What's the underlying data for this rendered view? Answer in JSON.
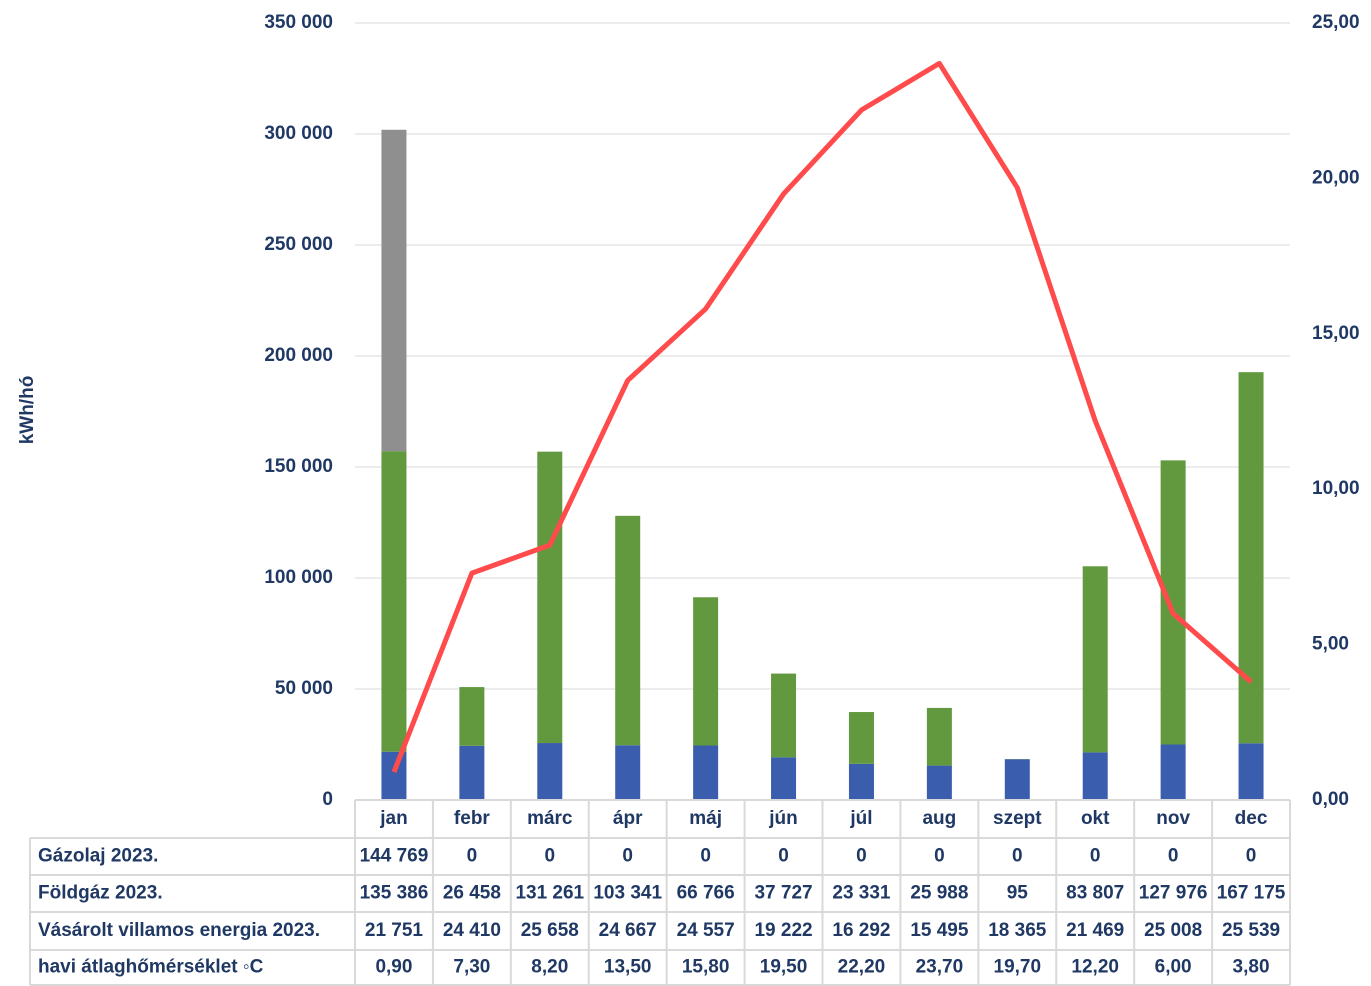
{
  "chart_data": {
    "type": "bar",
    "y_axis_label": "kWh/hó",
    "categories": [
      "jan",
      "febr",
      "márc",
      "ápr",
      "máj",
      "jún",
      "júl",
      "aug",
      "szept",
      "okt",
      "nov",
      "dec"
    ],
    "series": [
      {
        "name": "Vásárolt villamos energia 2023.",
        "color": "#3a5dae",
        "type": "bar",
        "values": [
          21751,
          24410,
          25658,
          24667,
          24557,
          19222,
          16292,
          15495,
          18365,
          21469,
          25008,
          25539
        ],
        "value_labels": [
          "21 751",
          "24 410",
          "25 658",
          "24 667",
          "24 557",
          "19 222",
          "16 292",
          "15 495",
          "18 365",
          "21 469",
          "25 008",
          "25 539"
        ]
      },
      {
        "name": "Földgáz 2023.",
        "color": "#62993e",
        "type": "bar",
        "values": [
          135386,
          26458,
          131261,
          103341,
          66766,
          37727,
          23331,
          25988,
          95,
          83807,
          127976,
          167175
        ],
        "value_labels": [
          "135 386",
          "26 458",
          "131 261",
          "103 341",
          "66 766",
          "37 727",
          "23 331",
          "25 988",
          "95",
          "83 807",
          "127 976",
          "167 175"
        ]
      },
      {
        "name": "Gázolaj 2023.",
        "color": "#8f8f8f",
        "type": "bar",
        "values": [
          144769,
          0,
          0,
          0,
          0,
          0,
          0,
          0,
          0,
          0,
          0,
          0
        ],
        "value_labels": [
          "144 769",
          "0",
          "0",
          "0",
          "0",
          "0",
          "0",
          "0",
          "0",
          "0",
          "0",
          "0"
        ]
      },
      {
        "name": "havi átlaghőmérséklet ◦C",
        "color": "#ff4b4b",
        "type": "line",
        "axis": "y2",
        "values": [
          0.9,
          7.3,
          8.2,
          13.5,
          15.8,
          19.5,
          22.2,
          23.7,
          19.7,
          12.2,
          6.0,
          3.8
        ],
        "value_labels": [
          "0,90",
          "7,30",
          "8,20",
          "13,50",
          "15,80",
          "19,50",
          "22,20",
          "23,70",
          "19,70",
          "12,20",
          "6,00",
          "3,80"
        ]
      }
    ],
    "ylim": [
      0,
      350000
    ],
    "yticks": [
      0,
      {
        "value": 50000,
        "label": "50 000"
      },
      {
        "value": 100000,
        "label": "100 000"
      },
      {
        "value": 150000,
        "label": "150 000"
      },
      {
        "value": 200000,
        "label": "200 000"
      },
      {
        "value": 250000,
        "label": "250 000"
      },
      {
        "value": 300000,
        "label": "300 000"
      },
      {
        "value": 350000,
        "label": "350 000"
      }
    ],
    "y2lim": [
      0,
      25
    ],
    "y2ticks": [
      {
        "value": 0,
        "label": "0,00"
      },
      {
        "value": 5,
        "label": "5,00"
      },
      {
        "value": 10,
        "label": "10,00"
      },
      {
        "value": 15,
        "label": "15,00"
      },
      {
        "value": 20,
        "label": "20,00"
      },
      {
        "value": 25,
        "label": "25,00"
      }
    ],
    "grid": true,
    "stacked": true
  }
}
